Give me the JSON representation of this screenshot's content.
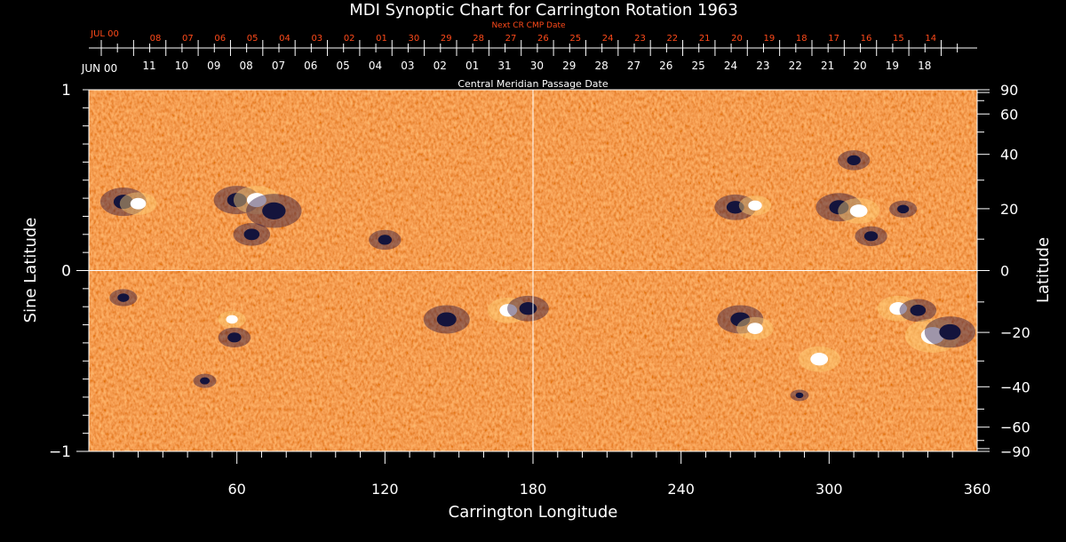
{
  "colors": {
    "background": "#000000",
    "text": "#ffffff",
    "accent_red": "#ff4a1a",
    "map_base": "#e8501c",
    "positive_polarity": "#ffffff",
    "negative_polarity": "#14143c"
  },
  "chart_data": {
    "type": "heatmap",
    "title": "MDI Synoptic Chart for Carrington Rotation 1963",
    "xlabel": "Carrington Longitude",
    "ylabel_left": "Sine Latitude",
    "ylabel_right": "Latitude",
    "xlim": [
      0,
      360
    ],
    "ylim": [
      -1,
      1
    ],
    "x_ticks": [
      60,
      120,
      180,
      240,
      300,
      360
    ],
    "y_ticks_left": [
      {
        "value": 1,
        "label": "1"
      },
      {
        "value": 0,
        "label": "0"
      },
      {
        "value": -1,
        "label": "−1"
      }
    ],
    "y_ticks_right": [
      {
        "deg": 90,
        "label": "90"
      },
      {
        "deg": 60,
        "label": "60"
      },
      {
        "deg": 40,
        "label": "40"
      },
      {
        "deg": 20,
        "label": "20"
      },
      {
        "deg": 0,
        "label": "0"
      },
      {
        "deg": -20,
        "label": "−20"
      },
      {
        "deg": -40,
        "label": "−40"
      },
      {
        "deg": -60,
        "label": "−60"
      },
      {
        "deg": -90,
        "label": "−90"
      }
    ],
    "crosshair": {
      "longitude": 180,
      "sine_latitude": 0
    },
    "cmp_axis": {
      "title": "Central Meridian Passage Date",
      "month_label": "JUN 00",
      "dates": [
        "11",
        "10",
        "09",
        "08",
        "07",
        "06",
        "05",
        "04",
        "03",
        "02",
        "01",
        "31",
        "30",
        "29",
        "28",
        "27",
        "26",
        "25",
        "24",
        "23",
        "22",
        "21",
        "20",
        "19",
        "18"
      ]
    },
    "next_cr_axis": {
      "title": "Next CR CMP Date",
      "month_label": "JUL 00",
      "dates": [
        "08",
        "07",
        "06",
        "05",
        "04",
        "03",
        "02",
        "01",
        "30",
        "29",
        "28",
        "27",
        "26",
        "25",
        "24",
        "23",
        "22",
        "21",
        "20",
        "19",
        "18",
        "17",
        "16",
        "15",
        "14"
      ]
    },
    "active_regions": [
      {
        "lon": 14,
        "sinlat": 0.38,
        "polarity": "negative",
        "size": 1.0
      },
      {
        "lon": 20,
        "sinlat": 0.37,
        "polarity": "positive",
        "size": 0.8
      },
      {
        "lon": 60,
        "sinlat": 0.39,
        "polarity": "negative",
        "size": 1.0
      },
      {
        "lon": 68,
        "sinlat": 0.39,
        "polarity": "positive",
        "size": 1.0
      },
      {
        "lon": 75,
        "sinlat": 0.33,
        "polarity": "negative",
        "size": 1.2
      },
      {
        "lon": 66,
        "sinlat": 0.2,
        "polarity": "negative",
        "size": 0.8
      },
      {
        "lon": 120,
        "sinlat": 0.17,
        "polarity": "negative",
        "size": 0.7
      },
      {
        "lon": 14,
        "sinlat": -0.15,
        "polarity": "negative",
        "size": 0.6
      },
      {
        "lon": 58,
        "sinlat": -0.27,
        "polarity": "positive",
        "size": 0.6
      },
      {
        "lon": 59,
        "sinlat": -0.37,
        "polarity": "negative",
        "size": 0.7
      },
      {
        "lon": 145,
        "sinlat": -0.27,
        "polarity": "negative",
        "size": 1.0
      },
      {
        "lon": 170,
        "sinlat": -0.22,
        "polarity": "positive",
        "size": 0.9
      },
      {
        "lon": 178,
        "sinlat": -0.21,
        "polarity": "negative",
        "size": 0.9
      },
      {
        "lon": 47,
        "sinlat": -0.61,
        "polarity": "negative",
        "size": 0.5
      },
      {
        "lon": 262,
        "sinlat": 0.35,
        "polarity": "negative",
        "size": 0.9
      },
      {
        "lon": 270,
        "sinlat": 0.36,
        "polarity": "positive",
        "size": 0.7
      },
      {
        "lon": 304,
        "sinlat": 0.35,
        "polarity": "negative",
        "size": 1.0
      },
      {
        "lon": 312,
        "sinlat": 0.33,
        "polarity": "positive",
        "size": 0.9
      },
      {
        "lon": 317,
        "sinlat": 0.19,
        "polarity": "negative",
        "size": 0.7
      },
      {
        "lon": 310,
        "sinlat": 0.61,
        "polarity": "negative",
        "size": 0.7
      },
      {
        "lon": 330,
        "sinlat": 0.34,
        "polarity": "negative",
        "size": 0.6
      },
      {
        "lon": 264,
        "sinlat": -0.27,
        "polarity": "negative",
        "size": 1.0
      },
      {
        "lon": 270,
        "sinlat": -0.32,
        "polarity": "positive",
        "size": 0.8
      },
      {
        "lon": 296,
        "sinlat": -0.49,
        "polarity": "positive",
        "size": 0.9
      },
      {
        "lon": 328,
        "sinlat": -0.21,
        "polarity": "positive",
        "size": 0.9
      },
      {
        "lon": 336,
        "sinlat": -0.22,
        "polarity": "negative",
        "size": 0.8
      },
      {
        "lon": 342,
        "sinlat": -0.36,
        "polarity": "positive",
        "size": 1.2
      },
      {
        "lon": 349,
        "sinlat": -0.34,
        "polarity": "negative",
        "size": 1.1
      },
      {
        "lon": 288,
        "sinlat": -0.69,
        "polarity": "negative",
        "size": 0.4
      }
    ]
  }
}
